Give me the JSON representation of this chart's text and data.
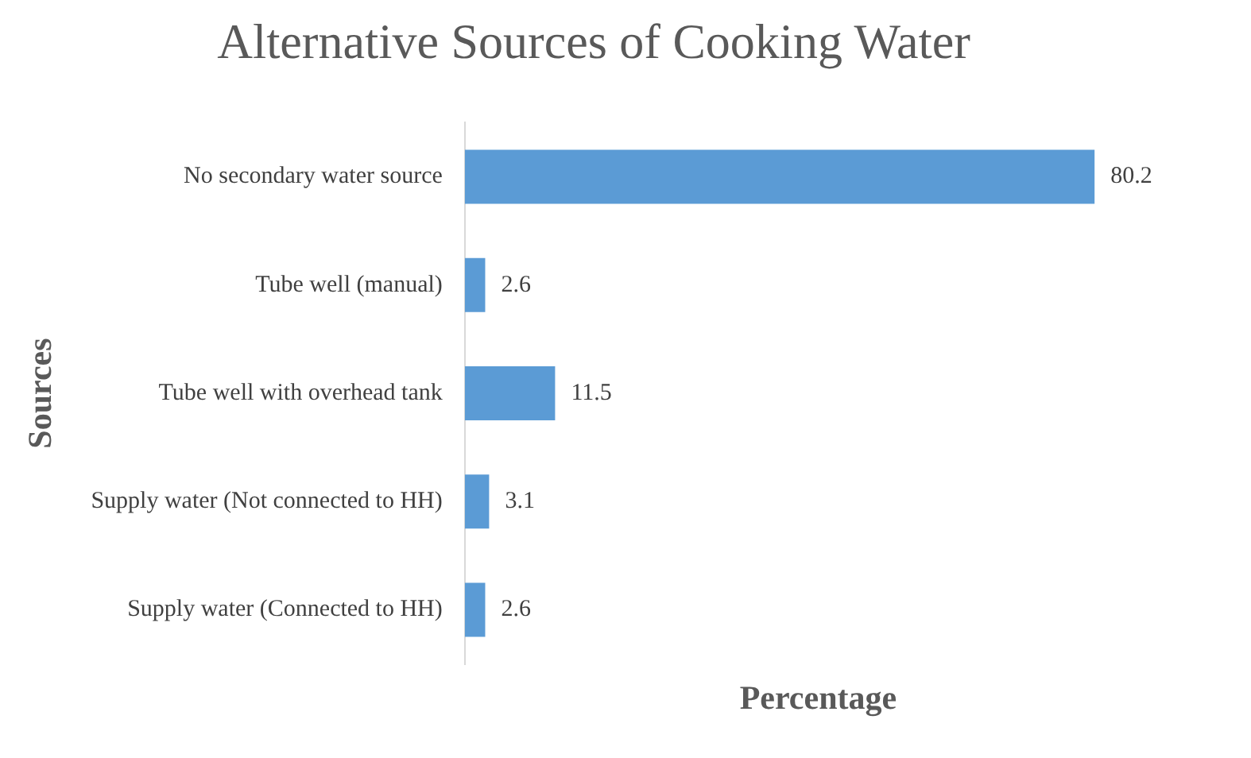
{
  "chart_data": {
    "type": "bar",
    "orientation": "horizontal",
    "title": "Alternative Sources of Cooking Water",
    "xlabel": "Percentage",
    "ylabel": "Sources",
    "categories": [
      "No secondary water source",
      "Tube well (manual)",
      "Tube well with overhead tank",
      "Supply water (Not connected to HH)",
      "Supply water (Connected to HH)"
    ],
    "values": [
      80.2,
      2.6,
      11.5,
      3.1,
      2.6
    ],
    "color": "#5b9bd5",
    "data_labels": true,
    "tick_labels": "y",
    "grid": false,
    "legend": false
  }
}
